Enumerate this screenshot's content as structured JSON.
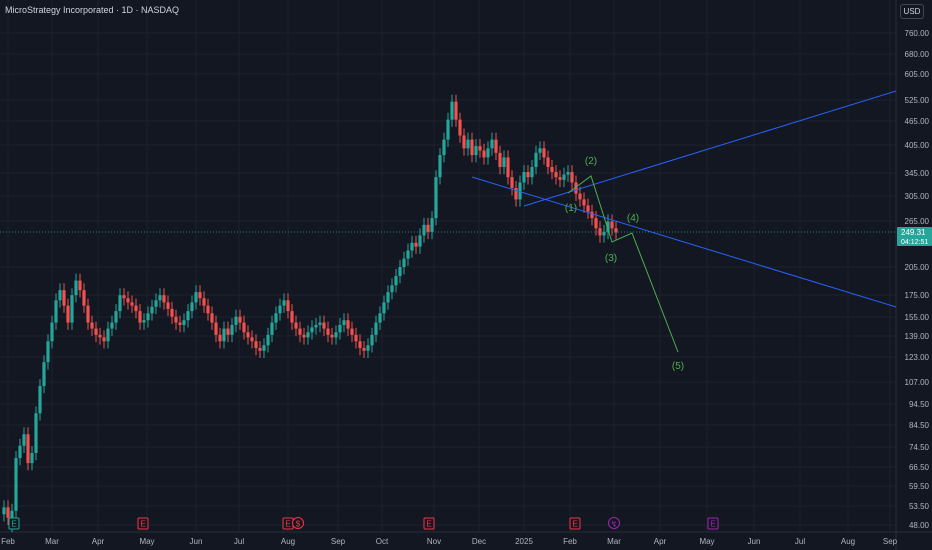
{
  "header": {
    "title": "MicroStrategy Incorporated · 1D · NASDAQ",
    "currency_button": "USD"
  },
  "price_axis": {
    "ticks": [
      "760.00",
      "680.00",
      "605.00",
      "525.00",
      "465.00",
      "405.00",
      "345.00",
      "305.00",
      "265.00",
      "205.00",
      "175.00",
      "155.00",
      "139.00",
      "123.00",
      "107.00",
      "94.50",
      "84.50",
      "74.50",
      "66.50",
      "59.50",
      "53.50",
      "48.00"
    ],
    "last_price": "249.31",
    "countdown": "04:12:51"
  },
  "time_axis": {
    "labels": [
      "Feb",
      "Mar",
      "Apr",
      "May",
      "Jun",
      "Jul",
      "Aug",
      "Sep",
      "Oct",
      "Nov",
      "Dec",
      "2025",
      "Feb",
      "Mar",
      "Apr",
      "May",
      "Jun",
      "Jul",
      "Aug",
      "Sep"
    ]
  },
  "event_markers": [
    {
      "kind": "earnings",
      "letter": "E",
      "color": "#26a69a"
    },
    {
      "kind": "earnings",
      "letter": "E",
      "color": "#f23645"
    },
    {
      "kind": "earnings",
      "letter": "E",
      "color": "#f23645"
    },
    {
      "kind": "dividend",
      "letter": "$",
      "color": "#f23645"
    },
    {
      "kind": "earnings",
      "letter": "E",
      "color": "#f23645"
    },
    {
      "kind": "earnings",
      "letter": "E",
      "color": "#f23645"
    },
    {
      "kind": "split",
      "letter": "↯",
      "color": "#9c27b0"
    },
    {
      "kind": "earnings",
      "letter": "E",
      "color": "#9c27b0"
    }
  ],
  "wave_labels": [
    "(1)",
    "(2)",
    "(3)",
    "(4)",
    "(5)"
  ],
  "colors": {
    "background": "#131722",
    "up": "#26a69a",
    "down": "#ef5350",
    "trendline": "#2962ff",
    "wave": "#4caf50",
    "grid": "#1e222d",
    "price_line": "#26a69a"
  },
  "price_series": [
    [
      51,
      53
    ],
    [
      53,
      50
    ],
    [
      48,
      52
    ],
    [
      52,
      70
    ],
    [
      70,
      75
    ],
    [
      75,
      80
    ],
    [
      80,
      68
    ],
    [
      68,
      72
    ],
    [
      72,
      90
    ],
    [
      90,
      105
    ],
    [
      105,
      120
    ],
    [
      120,
      135
    ],
    [
      135,
      150
    ],
    [
      150,
      170
    ],
    [
      170,
      180
    ],
    [
      180,
      165
    ],
    [
      165,
      150
    ],
    [
      150,
      175
    ],
    [
      175,
      190
    ],
    [
      190,
      180
    ],
    [
      180,
      165
    ],
    [
      165,
      150
    ],
    [
      150,
      145
    ],
    [
      145,
      140
    ],
    [
      140,
      138
    ],
    [
      138,
      135
    ],
    [
      135,
      145
    ],
    [
      145,
      150
    ],
    [
      150,
      160
    ],
    [
      160,
      175
    ],
    [
      175,
      172
    ],
    [
      172,
      168
    ],
    [
      168,
      165
    ],
    [
      165,
      160
    ],
    [
      160,
      150
    ],
    [
      150,
      152
    ],
    [
      152,
      158
    ],
    [
      158,
      164
    ],
    [
      164,
      170
    ],
    [
      170,
      175
    ],
    [
      175,
      168
    ],
    [
      168,
      162
    ],
    [
      162,
      155
    ],
    [
      155,
      150
    ],
    [
      150,
      148
    ],
    [
      148,
      152
    ],
    [
      152,
      160
    ],
    [
      160,
      168
    ],
    [
      168,
      178
    ],
    [
      178,
      172
    ],
    [
      172,
      165
    ],
    [
      165,
      158
    ],
    [
      158,
      150
    ],
    [
      150,
      140
    ],
    [
      140,
      135
    ],
    [
      135,
      145
    ],
    [
      145,
      140
    ],
    [
      140,
      148
    ],
    [
      148,
      155
    ],
    [
      155,
      150
    ],
    [
      150,
      142
    ],
    [
      142,
      138
    ],
    [
      138,
      135
    ],
    [
      135,
      130
    ],
    [
      130,
      128
    ],
    [
      128,
      132
    ],
    [
      132,
      140
    ],
    [
      140,
      150
    ],
    [
      150,
      158
    ],
    [
      158,
      165
    ],
    [
      165,
      170
    ],
    [
      170,
      160
    ],
    [
      160,
      150
    ],
    [
      150,
      145
    ],
    [
      145,
      140
    ],
    [
      140,
      138
    ],
    [
      138,
      142
    ],
    [
      142,
      146
    ],
    [
      146,
      148
    ],
    [
      148,
      150
    ],
    [
      150,
      145
    ],
    [
      145,
      140
    ],
    [
      140,
      138
    ],
    [
      138,
      142
    ],
    [
      142,
      148
    ],
    [
      148,
      152
    ],
    [
      152,
      145
    ],
    [
      145,
      140
    ],
    [
      140,
      135
    ],
    [
      135,
      130
    ],
    [
      130,
      128
    ],
    [
      128,
      132
    ],
    [
      132,
      140
    ],
    [
      140,
      150
    ],
    [
      150,
      158
    ],
    [
      158,
      168
    ],
    [
      168,
      178
    ],
    [
      178,
      185
    ],
    [
      185,
      195
    ],
    [
      195,
      205
    ],
    [
      205,
      215
    ],
    [
      215,
      225
    ],
    [
      225,
      235
    ],
    [
      235,
      230
    ],
    [
      230,
      245
    ],
    [
      245,
      260
    ],
    [
      260,
      250
    ],
    [
      250,
      270
    ],
    [
      270,
      340
    ],
    [
      340,
      385
    ],
    [
      385,
      420
    ],
    [
      420,
      470
    ],
    [
      470,
      520
    ],
    [
      520,
      470
    ],
    [
      470,
      430
    ],
    [
      430,
      400
    ],
    [
      400,
      420
    ],
    [
      420,
      385
    ],
    [
      385,
      405
    ],
    [
      405,
      395
    ],
    [
      395,
      380
    ],
    [
      380,
      400
    ],
    [
      400,
      420
    ],
    [
      420,
      390
    ],
    [
      390,
      360
    ],
    [
      360,
      380
    ],
    [
      380,
      340
    ],
    [
      340,
      320
    ],
    [
      320,
      300
    ],
    [
      300,
      330
    ],
    [
      330,
      350
    ],
    [
      350,
      340
    ],
    [
      340,
      360
    ],
    [
      360,
      390
    ],
    [
      390,
      400
    ],
    [
      400,
      380
    ],
    [
      380,
      360
    ],
    [
      360,
      350
    ],
    [
      350,
      340
    ],
    [
      340,
      335
    ],
    [
      335,
      345
    ],
    [
      345,
      350
    ],
    [
      350,
      330
    ],
    [
      330,
      310
    ],
    [
      310,
      300
    ],
    [
      300,
      290
    ],
    [
      290,
      280
    ],
    [
      280,
      270
    ],
    [
      270,
      255
    ],
    [
      255,
      245
    ],
    [
      245,
      250
    ],
    [
      250,
      265
    ],
    [
      265,
      255
    ],
    [
      255,
      249
    ]
  ]
}
